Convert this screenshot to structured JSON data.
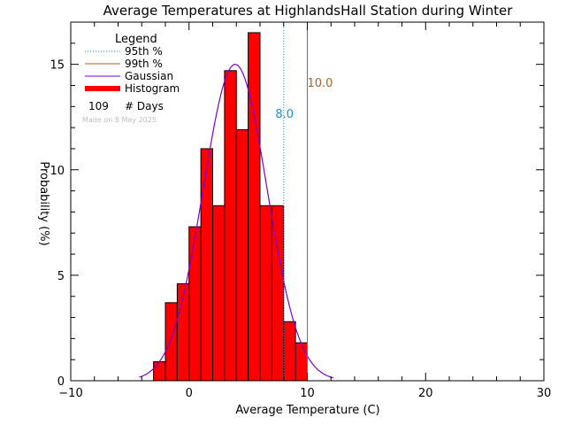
{
  "chart_data": {
    "type": "bar",
    "title": "Average Temperatures at HighlandsHall Station during Winter",
    "xlabel": "Average Temperature (C)",
    "ylabel": "Probability (%)",
    "xlim": [
      -10,
      30
    ],
    "ylim": [
      0,
      17
    ],
    "x_ticks": [
      -10,
      0,
      10,
      20,
      30
    ],
    "y_ticks": [
      0,
      5,
      10,
      15
    ],
    "bin_width": 1,
    "bins": [
      {
        "x": -3,
        "value": 0.9
      },
      {
        "x": -2,
        "value": 3.7
      },
      {
        "x": -1,
        "value": 4.6
      },
      {
        "x": 0,
        "value": 7.3
      },
      {
        "x": 1,
        "value": 11.0
      },
      {
        "x": 2,
        "value": 8.3
      },
      {
        "x": 3,
        "value": 14.7
      },
      {
        "x": 4,
        "value": 11.9
      },
      {
        "x": 5,
        "value": 16.5
      },
      {
        "x": 6,
        "value": 8.3
      },
      {
        "x": 7,
        "value": 8.3
      },
      {
        "x": 8,
        "value": 2.8
      },
      {
        "x": 9,
        "value": 1.8
      }
    ],
    "gaussian": {
      "mean": 3.9,
      "sigma": 2.7,
      "peak": 15.0,
      "x_range": [
        -4.2,
        12.2
      ]
    },
    "percentiles": [
      {
        "name": "95th %",
        "value": 8.0,
        "label": "8.0",
        "color": "#1a8fd0",
        "style": "dotted"
      },
      {
        "name": "99th %",
        "value": 10.0,
        "label": "10.0",
        "color": "#a0642a",
        "style": "solid"
      }
    ],
    "legend": {
      "title": "Legend",
      "placement": "top-left",
      "items": [
        {
          "label": "95th %",
          "kind": "dotted",
          "color": "#1a8fd0"
        },
        {
          "label": "99th %",
          "kind": "line",
          "color": "#a0642a"
        },
        {
          "label": "Gaussian",
          "kind": "line",
          "color": "#7a00d0"
        },
        {
          "label": "Histogram",
          "kind": "thick",
          "color": "#ff0000"
        }
      ],
      "days_count": "109",
      "days_label": "# Days"
    },
    "annotation": "Made on 8 May 2025",
    "colors": {
      "histogram": "#ff0000",
      "gaussian": "#7a00d0",
      "annotation": "#bbbbbb"
    }
  }
}
